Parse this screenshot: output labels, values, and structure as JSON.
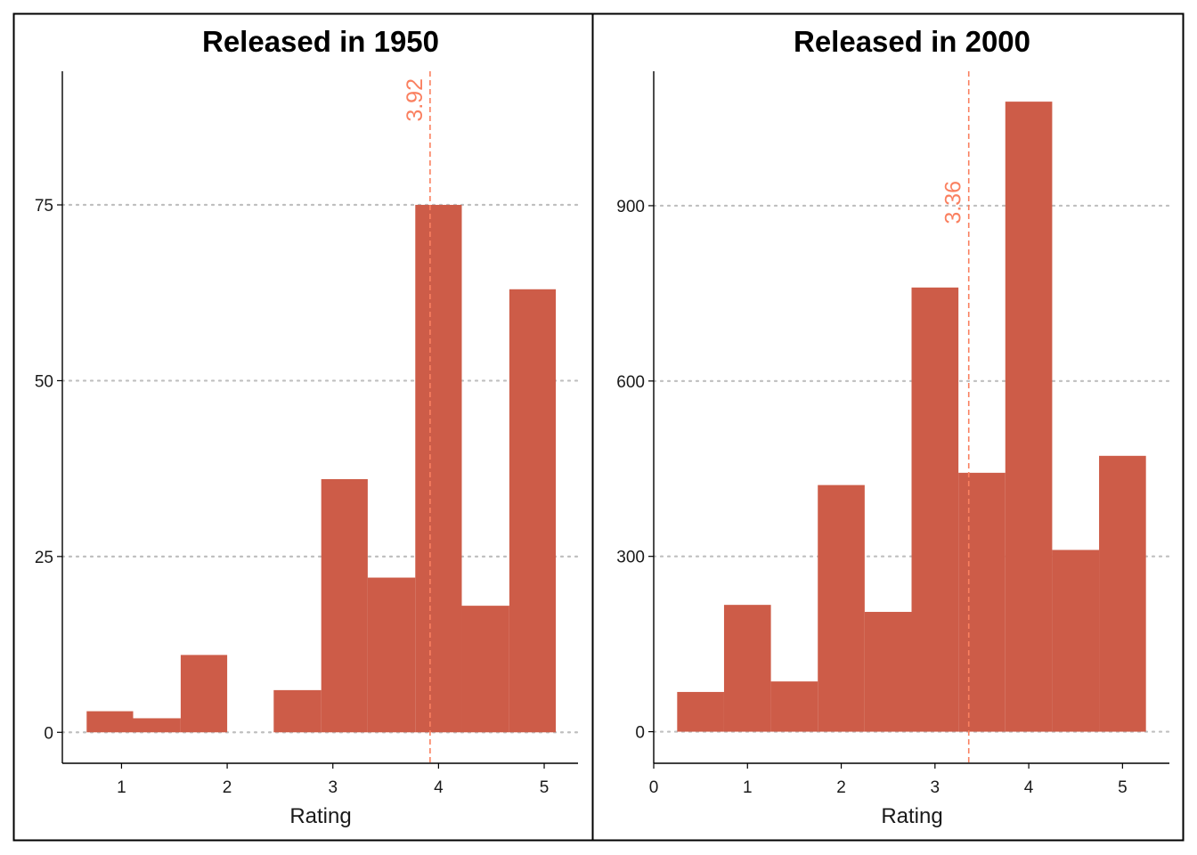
{
  "chart_data": [
    {
      "type": "bar",
      "title": "Released in 1950",
      "xlabel": "Rating",
      "ylabel": "",
      "xlim": [
        0.44,
        5.32
      ],
      "ylim": [
        -4.4,
        94
      ],
      "x_ticks": [
        1,
        2,
        3,
        4,
        5
      ],
      "y_ticks": [
        0,
        25,
        50,
        75
      ],
      "bins": [
        {
          "x0": 0.67,
          "x1": 1.11,
          "count": 3
        },
        {
          "x0": 1.11,
          "x1": 1.56,
          "count": 2
        },
        {
          "x0": 1.56,
          "x1": 2.0,
          "count": 11
        },
        {
          "x0": 2.0,
          "x1": 2.44,
          "count": 0
        },
        {
          "x0": 2.44,
          "x1": 2.89,
          "count": 6
        },
        {
          "x0": 2.89,
          "x1": 3.33,
          "count": 36
        },
        {
          "x0": 3.33,
          "x1": 3.78,
          "count": 22
        },
        {
          "x0": 3.78,
          "x1": 4.22,
          "count": 75
        },
        {
          "x0": 4.22,
          "x1": 4.67,
          "count": 18
        },
        {
          "x0": 4.67,
          "x1": 5.11,
          "count": 63
        }
      ],
      "mean": 3.92,
      "mean_label": "3.92",
      "bar_color": "#cd5c48",
      "mean_color": "#fa8060",
      "grid": "horizontal dotted",
      "legend": "none"
    },
    {
      "type": "bar",
      "title": "Released in 2000",
      "xlabel": "Rating",
      "ylabel": "",
      "xlim": [
        0,
        5.5
      ],
      "ylim": [
        -54,
        1130
      ],
      "x_ticks": [
        0,
        1,
        2,
        3,
        4,
        5
      ],
      "y_ticks": [
        0,
        300,
        600,
        900
      ],
      "bins": [
        {
          "x0": 0.25,
          "x1": 0.75,
          "count": 68
        },
        {
          "x0": 0.75,
          "x1": 1.25,
          "count": 217
        },
        {
          "x0": 1.25,
          "x1": 1.75,
          "count": 86
        },
        {
          "x0": 1.75,
          "x1": 2.25,
          "count": 422
        },
        {
          "x0": 2.25,
          "x1": 2.75,
          "count": 205
        },
        {
          "x0": 2.75,
          "x1": 3.25,
          "count": 760
        },
        {
          "x0": 3.25,
          "x1": 3.75,
          "count": 443
        },
        {
          "x0": 3.75,
          "x1": 4.25,
          "count": 1078
        },
        {
          "x0": 4.25,
          "x1": 4.75,
          "count": 311
        },
        {
          "x0": 4.75,
          "x1": 5.25,
          "count": 472
        }
      ],
      "mean": 3.36,
      "mean_label": "3.36",
      "bar_color": "#cd5c48",
      "mean_color": "#fa8060",
      "grid": "horizontal dotted",
      "legend": "none"
    }
  ]
}
